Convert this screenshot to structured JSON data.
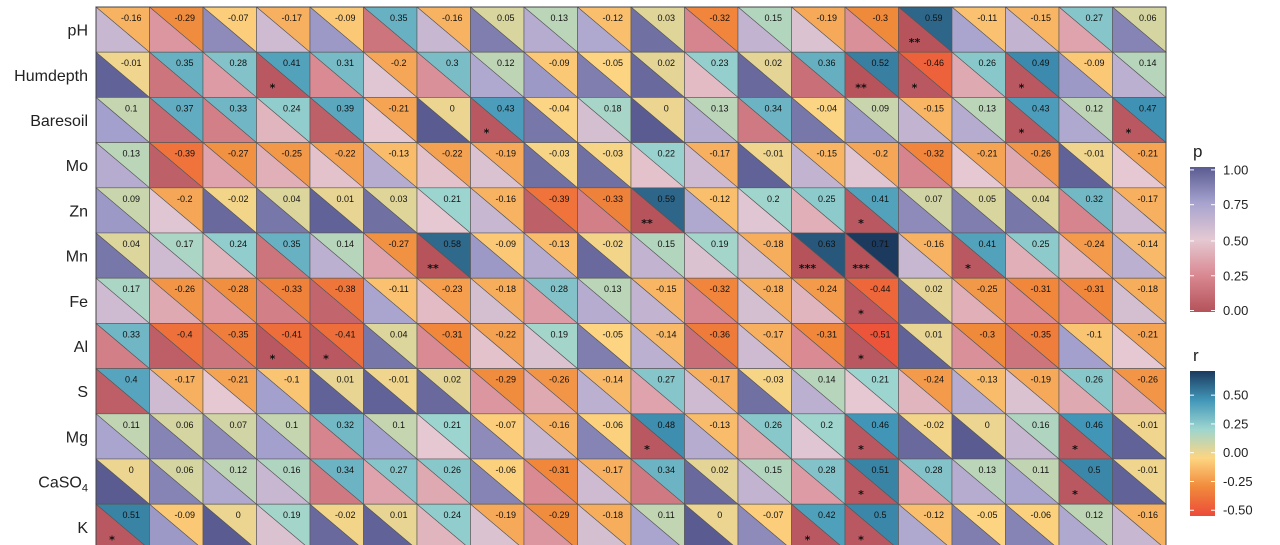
{
  "chart_data": {
    "type": "heatmap",
    "rows": [
      "pH",
      "Humdepth",
      "Baresoil",
      "Mo",
      "Zn",
      "Mn",
      "Fe",
      "Al",
      "S",
      "Mg",
      "CaSO4",
      "K"
    ],
    "row_labels_display": [
      {
        "main": "pH",
        "sub": ""
      },
      {
        "main": "Humdepth",
        "sub": ""
      },
      {
        "main": "Baresoil",
        "sub": ""
      },
      {
        "main": "Mo",
        "sub": ""
      },
      {
        "main": "Zn",
        "sub": ""
      },
      {
        "main": "Mn",
        "sub": ""
      },
      {
        "main": "Fe",
        "sub": ""
      },
      {
        "main": "Al",
        "sub": ""
      },
      {
        "main": "S",
        "sub": ""
      },
      {
        "main": "Mg",
        "sub": ""
      },
      {
        "main": "CaSO",
        "sub": "4"
      },
      {
        "main": "K",
        "sub": ""
      }
    ],
    "n_columns": 20,
    "r": [
      [
        -0.16,
        -0.29,
        -0.07,
        -0.17,
        -0.09,
        0.35,
        -0.16,
        0.05,
        0.13,
        -0.12,
        0.03,
        -0.32,
        0.15,
        -0.19,
        -0.3,
        0.59,
        -0.11,
        -0.15,
        0.27,
        0.06
      ],
      [
        -0.01,
        0.35,
        0.28,
        0.41,
        0.31,
        -0.2,
        0.3,
        0.12,
        -0.09,
        -0.05,
        0.02,
        0.23,
        0.02,
        0.36,
        0.52,
        -0.46,
        0.26,
        0.49,
        -0.09,
        0.14
      ],
      [
        0.1,
        0.37,
        0.33,
        0.24,
        0.39,
        -0.21,
        0,
        0.43,
        -0.04,
        0.18,
        0,
        0.13,
        0.34,
        -0.04,
        0.09,
        -0.15,
        0.13,
        0.43,
        0.12,
        0.47
      ],
      [
        0.13,
        -0.39,
        -0.27,
        -0.25,
        -0.22,
        -0.13,
        -0.22,
        -0.19,
        -0.03,
        -0.03,
        0.22,
        -0.17,
        -0.01,
        -0.15,
        -0.2,
        -0.32,
        -0.21,
        -0.26,
        -0.01,
        -0.21
      ],
      [
        0.09,
        -0.2,
        -0.02,
        0.04,
        0.01,
        0.03,
        0.21,
        -0.16,
        -0.39,
        -0.33,
        0.59,
        -0.12,
        0.2,
        0.25,
        0.41,
        0.07,
        0.05,
        0.04,
        0.32,
        -0.17
      ],
      [
        0.04,
        0.17,
        0.24,
        0.35,
        0.14,
        -0.27,
        0.58,
        -0.09,
        -0.13,
        -0.02,
        0.15,
        0.19,
        -0.18,
        0.63,
        0.71,
        -0.16,
        0.41,
        0.25,
        -0.24,
        -0.14
      ],
      [
        0.17,
        -0.26,
        -0.28,
        -0.33,
        -0.38,
        -0.11,
        -0.23,
        -0.18,
        0.28,
        0.13,
        -0.15,
        -0.32,
        -0.18,
        -0.24,
        -0.44,
        0.02,
        -0.25,
        -0.31,
        -0.31,
        -0.18
      ],
      [
        0.33,
        -0.4,
        -0.35,
        -0.41,
        -0.41,
        0.04,
        -0.31,
        -0.22,
        0.19,
        -0.05,
        -0.14,
        -0.36,
        -0.17,
        -0.31,
        -0.51,
        0.01,
        -0.3,
        -0.35,
        -0.1,
        -0.21
      ],
      [
        0.4,
        -0.17,
        -0.21,
        -0.1,
        0.01,
        -0.01,
        0.02,
        -0.29,
        -0.26,
        -0.14,
        0.27,
        -0.17,
        -0.03,
        0.14,
        0.21,
        -0.24,
        -0.13,
        -0.19,
        0.26,
        -0.26
      ],
      [
        0.11,
        0.06,
        0.07,
        0.1,
        0.32,
        0.1,
        0.21,
        -0.07,
        -0.16,
        -0.06,
        0.48,
        -0.13,
        0.26,
        0.2,
        0.46,
        -0.02,
        0,
        0.16,
        0.46,
        -0.01
      ],
      [
        0,
        0.06,
        0.12,
        0.16,
        0.34,
        0.27,
        0.26,
        -0.06,
        -0.31,
        -0.17,
        0.34,
        0.02,
        0.15,
        0.28,
        0.51,
        0.28,
        0.13,
        0.11,
        0.5,
        -0.01
      ],
      [
        0.51,
        -0.09,
        0,
        0.19,
        -0.02,
        0.01,
        0.24,
        -0.19,
        -0.29,
        -0.18,
        0.11,
        0,
        -0.07,
        0.42,
        0.5,
        -0.12,
        -0.05,
        -0.06,
        0.12,
        -0.16
      ]
    ],
    "significance": [
      [
        "",
        "",
        "",
        "",
        "",
        "",
        "",
        "",
        "",
        "",
        "",
        "",
        "",
        "",
        "",
        "**",
        "",
        "",
        "",
        ""
      ],
      [
        "",
        "",
        "",
        "*",
        "",
        "",
        "",
        "",
        "",
        "",
        "",
        "",
        "",
        "",
        "**",
        "*",
        "",
        "*",
        "",
        ""
      ],
      [
        "",
        "",
        "",
        "",
        "",
        "",
        "",
        "*",
        "",
        "",
        "",
        "",
        "",
        "",
        "",
        "",
        "",
        "*",
        "",
        "*"
      ],
      [
        "",
        "",
        "",
        "",
        "",
        "",
        "",
        "",
        "",
        "",
        "",
        "",
        "",
        "",
        "",
        "",
        "",
        "",
        "",
        ""
      ],
      [
        "",
        "",
        "",
        "",
        "",
        "",
        "",
        "",
        "",
        "",
        "**",
        "",
        "",
        "",
        "*",
        "",
        "",
        "",
        "",
        ""
      ],
      [
        "",
        "",
        "",
        "",
        "",
        "",
        "**",
        "",
        "",
        "",
        "",
        "",
        "",
        "***",
        "***",
        "",
        "*",
        "",
        "",
        ""
      ],
      [
        "",
        "",
        "",
        "",
        "",
        "",
        "",
        "",
        "",
        "",
        "",
        "",
        "",
        "",
        "*",
        "",
        "",
        "",
        "",
        ""
      ],
      [
        "",
        "",
        "",
        "*",
        "*",
        "",
        "",
        "",
        "",
        "",
        "",
        "",
        "",
        "",
        "*",
        "",
        "",
        "",
        "",
        ""
      ],
      [
        "",
        "",
        "",
        "",
        "",
        "",
        "",
        "",
        "",
        "",
        "",
        "",
        "",
        "",
        "",
        "",
        "",
        "",
        "",
        ""
      ],
      [
        "",
        "",
        "",
        "",
        "",
        "",
        "",
        "",
        "",
        "",
        "*",
        "",
        "",
        "",
        "*",
        "",
        "",
        "",
        "*",
        ""
      ],
      [
        "",
        "",
        "",
        "",
        "",
        "",
        "",
        "",
        "",
        "",
        "",
        "",
        "",
        "",
        "*",
        "",
        "",
        "",
        "*",
        ""
      ],
      [
        "*",
        "",
        "",
        "",
        "",
        "",
        "",
        "",
        "",
        "",
        "",
        "",
        "",
        "*",
        "*",
        "",
        "",
        "",
        "",
        ""
      ]
    ],
    "legend_p": {
      "title": "p",
      "range": [
        0,
        1
      ],
      "ticks": [
        "1.00",
        "0.75",
        "0.50",
        "0.25",
        "0.00"
      ],
      "colors_low_to_high": [
        "#b5525a",
        "#d98891",
        "#e5c9d2",
        "#a7a3cf",
        "#5a5b91"
      ]
    },
    "legend_r": {
      "title": "r",
      "range": [
        -0.55,
        0.71
      ],
      "ticks": [
        "0.50",
        "0.25",
        "0.00",
        "-0.25",
        "-0.50"
      ],
      "colors_low_to_high": [
        "#ec4b3a",
        "#f08a3b",
        "#fdd582",
        "#9dd5cf",
        "#4196b8",
        "#1b3a5e"
      ]
    }
  }
}
